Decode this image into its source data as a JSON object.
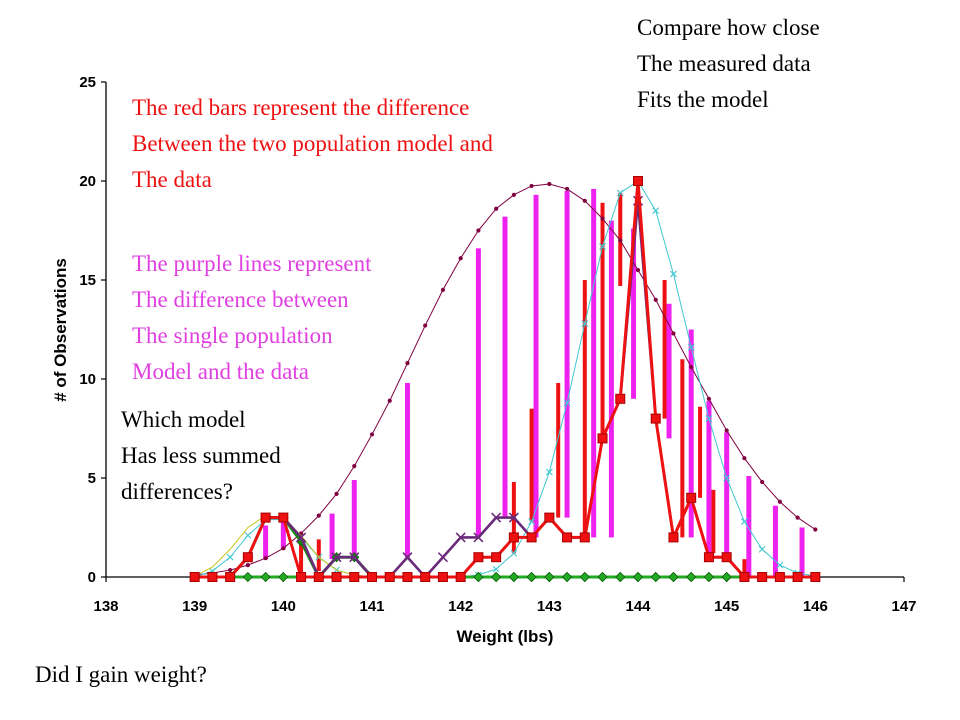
{
  "chart_data": {
    "type": "line",
    "xlabel": "Weight (lbs)",
    "ylabel": "# of Observations",
    "xlim": [
      138,
      147
    ],
    "ylim": [
      0,
      25
    ],
    "xticks": [
      "138",
      "139",
      "140",
      "141",
      "142",
      "143",
      "144",
      "145",
      "146",
      "147"
    ],
    "yticks": [
      "0",
      "5",
      "10",
      "15",
      "20",
      "25"
    ],
    "x": [
      139.0,
      139.2,
      139.4,
      139.6,
      139.8,
      140.0,
      140.2,
      140.4,
      140.6,
      140.8,
      141.0,
      141.2,
      141.4,
      141.6,
      141.8,
      142.0,
      142.2,
      142.4,
      142.6,
      142.8,
      143.0,
      143.2,
      143.4,
      143.6,
      143.8,
      144.0,
      144.2,
      144.4,
      144.6,
      144.8,
      145.0,
      145.2,
      145.4,
      145.6,
      145.8,
      146.0
    ],
    "series": [
      {
        "role": "measured data",
        "color": "#6b2a7a",
        "marker": "x",
        "values": [
          0,
          0,
          0,
          1,
          3,
          3,
          2,
          0,
          1,
          1,
          0,
          0,
          1,
          0,
          1,
          2,
          2,
          3,
          3,
          2,
          3,
          2,
          2,
          7,
          9,
          19,
          8,
          2,
          4,
          1,
          1,
          0,
          0,
          0,
          0,
          0
        ]
      },
      {
        "role": "single population model",
        "color": "#800040",
        "marker": "dot",
        "values": [
          0.1,
          0.2,
          0.35,
          0.6,
          0.95,
          1.45,
          2.2,
          3.1,
          4.2,
          5.6,
          7.2,
          8.9,
          10.8,
          12.7,
          14.5,
          16.1,
          17.5,
          18.6,
          19.3,
          19.75,
          19.85,
          19.6,
          19.0,
          18.1,
          17.0,
          15.5,
          14.0,
          12.3,
          10.6,
          9.0,
          7.4,
          6.0,
          4.8,
          3.8,
          3.0,
          2.4
        ]
      },
      {
        "role": "two population model",
        "color": "#40c8d0",
        "marker": "x",
        "values": [
          0.0,
          0.3,
          1.0,
          2.1,
          2.9,
          2.9,
          2.0,
          1.0,
          0.35,
          0.1,
          0.0,
          0.0,
          0.0,
          0.0,
          0.0,
          0.0,
          0.1,
          0.4,
          1.2,
          2.8,
          5.3,
          8.8,
          12.8,
          16.7,
          19.4,
          20.0,
          18.5,
          15.3,
          11.6,
          8.0,
          5.0,
          2.8,
          1.4,
          0.6,
          0.2,
          0.05
        ]
      },
      {
        "role": "first population component",
        "color": "#c8c820",
        "marker": "none",
        "values": [
          0.05,
          0.5,
          1.4,
          2.5,
          3.1,
          3.0,
          2.1,
          1.0,
          0.35,
          0.1,
          0.0,
          0.0,
          0.0,
          0.0,
          0.0,
          0.0,
          0.0,
          0.0,
          0.0,
          0.0,
          0.0,
          0.0,
          0.0,
          0.0,
          0.0,
          0.0,
          0.0,
          0.0,
          0.0,
          0.0,
          0.0,
          0.0,
          0.0,
          0.0,
          0.0,
          0.0
        ]
      },
      {
        "role": "second population component",
        "color": "#118811",
        "marker": "diamond",
        "values": [
          0,
          0,
          0,
          1,
          3,
          3,
          1.8,
          0,
          1,
          1,
          0,
          0,
          0,
          0,
          0,
          0,
          0,
          0,
          0,
          0,
          0,
          0,
          0,
          0,
          0,
          0,
          0,
          0,
          0,
          0,
          0,
          0,
          0,
          0,
          0,
          0
        ]
      },
      {
        "role": "baseline",
        "color": "#22aa22",
        "marker": "diamond",
        "values": [
          0,
          0,
          0,
          0,
          0,
          0,
          0,
          0,
          0,
          0,
          0,
          0,
          0,
          0,
          0,
          0,
          0,
          0,
          0,
          0,
          0,
          0,
          0,
          0,
          0,
          0,
          0,
          0,
          0,
          0,
          0,
          0,
          0,
          0,
          0,
          0
        ]
      },
      {
        "role": "measured data (square markers)",
        "color": "#ee1111",
        "marker": "square",
        "values": [
          0,
          0,
          0,
          1,
          3,
          3,
          0,
          0,
          0,
          0,
          0,
          0,
          0,
          0,
          0,
          0,
          1,
          1,
          2,
          2,
          3,
          2,
          2,
          7,
          9,
          20,
          8,
          2,
          4,
          1,
          1,
          0,
          0,
          0,
          0,
          0
        ]
      }
    ],
    "difference_bars": [
      {
        "role": "difference: data vs two population model",
        "color": "#ee1111",
        "width": 4,
        "bars": [
          [
            140.2,
            2.0,
            0.0
          ],
          [
            140.4,
            1.9,
            0.3
          ],
          [
            142.6,
            4.8,
            1.2
          ],
          [
            142.8,
            8.5,
            2.8
          ],
          [
            143.1,
            9.8,
            3.0
          ],
          [
            143.4,
            15.0,
            2.0
          ],
          [
            143.6,
            18.9,
            7.0
          ],
          [
            143.8,
            19.4,
            14.7
          ],
          [
            144.3,
            15.0,
            8.0
          ],
          [
            144.5,
            11.0,
            2.0
          ],
          [
            144.7,
            8.6,
            4.0
          ],
          [
            144.85,
            4.4,
            1.2
          ],
          [
            145.0,
            2.5,
            0.9
          ],
          [
            145.2,
            0.9,
            0.0
          ]
        ]
      },
      {
        "role": "difference: data vs single population model",
        "color": "#ee22ee",
        "width": 5,
        "bars": [
          [
            139.8,
            2.6,
            0.9
          ],
          [
            140.0,
            3.0,
            1.4
          ],
          [
            140.55,
            3.2,
            0.9
          ],
          [
            140.8,
            4.9,
            1.0
          ],
          [
            141.4,
            9.8,
            1.0
          ],
          [
            142.2,
            16.6,
            2.0
          ],
          [
            142.5,
            18.2,
            3.0
          ],
          [
            142.85,
            19.3,
            2.0
          ],
          [
            143.2,
            19.5,
            3.0
          ],
          [
            143.5,
            19.6,
            2.0
          ],
          [
            143.7,
            18.0,
            2.0
          ],
          [
            143.95,
            17.6,
            9.0
          ],
          [
            144.35,
            13.8,
            7.0
          ],
          [
            144.6,
            12.5,
            2.0
          ],
          [
            144.8,
            8.9,
            1.0
          ],
          [
            145.0,
            7.3,
            1.0
          ],
          [
            145.25,
            5.1,
            0.0
          ],
          [
            145.55,
            3.6,
            0.0
          ],
          [
            145.85,
            2.5,
            0.0
          ]
        ]
      }
    ]
  },
  "annotations": {
    "top_right": [
      "Compare how close",
      "The measured data",
      "Fits the model"
    ],
    "red_note": [
      "The red bars represent the difference",
      "Between the two population model and",
      "The data"
    ],
    "magenta_note": [
      "The purple lines represent",
      "The difference between",
      "The single population",
      "Model and the data"
    ],
    "question_note": [
      "Which model",
      "Has less summed",
      "differences?"
    ],
    "bottom": "Did I gain weight?"
  },
  "colors": {
    "red_text": "#ee1111",
    "magenta_text": "#e040e0",
    "black_text": "#000000"
  }
}
